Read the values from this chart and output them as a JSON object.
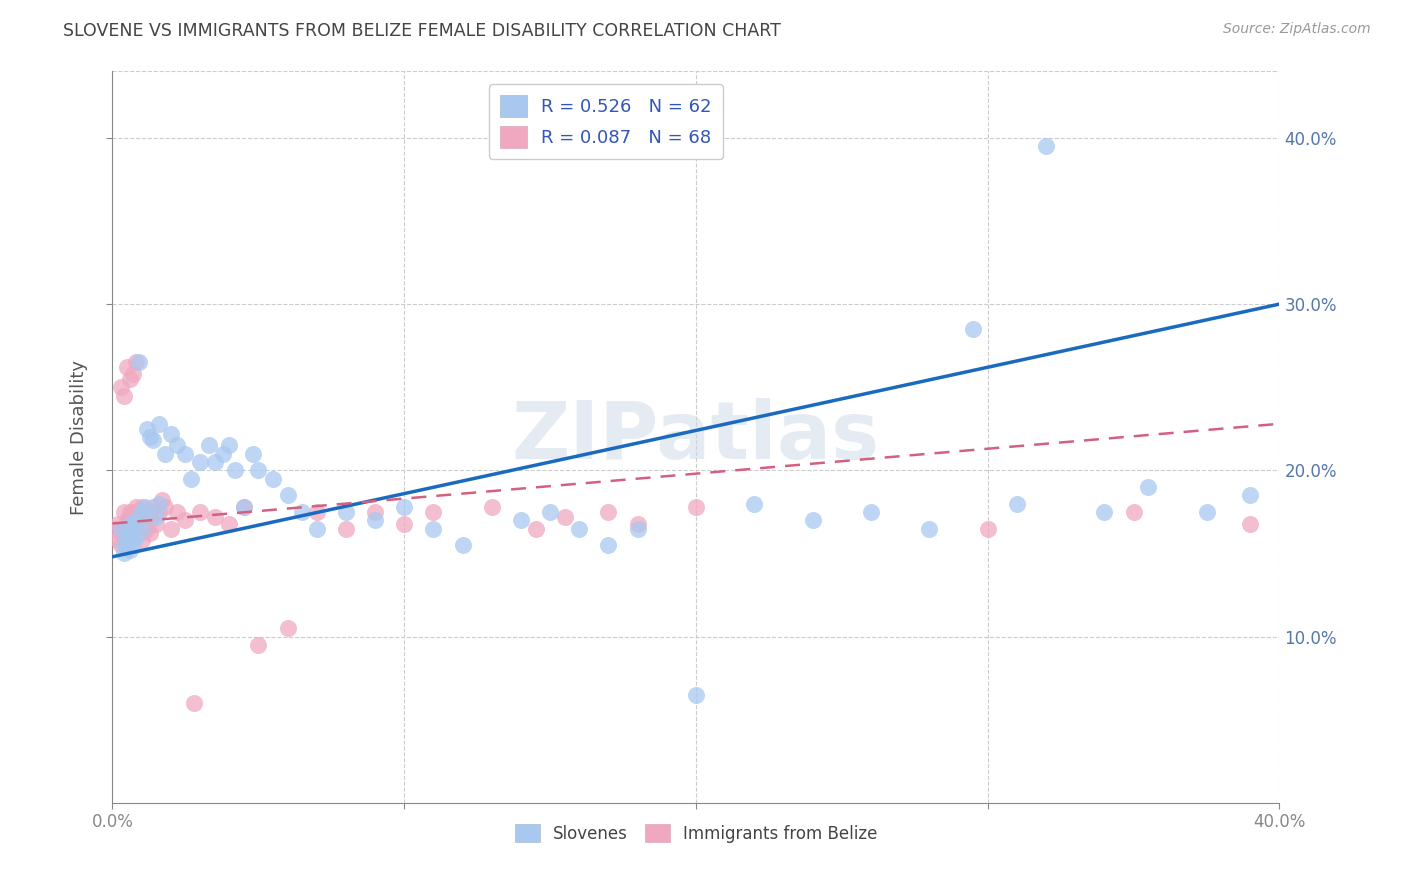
{
  "title": "SLOVENE VS IMMIGRANTS FROM BELIZE FEMALE DISABILITY CORRELATION CHART",
  "source": "Source: ZipAtlas.com",
  "xlabel": "",
  "ylabel": "Female Disability",
  "xlim": [
    0.0,
    0.4
  ],
  "ylim": [
    0.0,
    0.44
  ],
  "xtick_labels": [
    "0.0%",
    "",
    "",
    "",
    "40.0%"
  ],
  "xtick_values": [
    0.0,
    0.1,
    0.2,
    0.3,
    0.4
  ],
  "ytick_labels": [
    "10.0%",
    "20.0%",
    "30.0%",
    "40.0%"
  ],
  "ytick_values": [
    0.1,
    0.2,
    0.3,
    0.4
  ],
  "R_slovene": 0.526,
  "N_slovene": 62,
  "R_belize": 0.087,
  "N_belize": 68,
  "slovene_color": "#a8c8f0",
  "belize_color": "#f0a8c0",
  "slovene_line_color": "#1a6bbf",
  "belize_line_color": "#d46080",
  "watermark": "ZIPatlas",
  "background_color": "#ffffff",
  "slovene_x": [
    0.003,
    0.004,
    0.004,
    0.005,
    0.005,
    0.006,
    0.006,
    0.006,
    0.007,
    0.007,
    0.008,
    0.008,
    0.009,
    0.01,
    0.01,
    0.011,
    0.012,
    0.013,
    0.014,
    0.015,
    0.016,
    0.016,
    0.018,
    0.02,
    0.022,
    0.025,
    0.027,
    0.03,
    0.033,
    0.035,
    0.038,
    0.04,
    0.042,
    0.045,
    0.048,
    0.05,
    0.055,
    0.06,
    0.065,
    0.07,
    0.08,
    0.09,
    0.1,
    0.11,
    0.12,
    0.14,
    0.15,
    0.16,
    0.17,
    0.18,
    0.2,
    0.22,
    0.24,
    0.26,
    0.28,
    0.295,
    0.31,
    0.32,
    0.34,
    0.355,
    0.375,
    0.39
  ],
  "slovene_y": [
    0.165,
    0.155,
    0.15,
    0.158,
    0.162,
    0.152,
    0.16,
    0.168,
    0.165,
    0.155,
    0.16,
    0.17,
    0.265,
    0.165,
    0.175,
    0.178,
    0.225,
    0.22,
    0.218,
    0.172,
    0.18,
    0.228,
    0.21,
    0.222,
    0.215,
    0.21,
    0.195,
    0.205,
    0.215,
    0.205,
    0.21,
    0.215,
    0.2,
    0.178,
    0.21,
    0.2,
    0.195,
    0.185,
    0.175,
    0.165,
    0.175,
    0.17,
    0.178,
    0.165,
    0.155,
    0.17,
    0.175,
    0.165,
    0.155,
    0.165,
    0.065,
    0.18,
    0.17,
    0.175,
    0.165,
    0.285,
    0.18,
    0.395,
    0.175,
    0.19,
    0.175,
    0.185
  ],
  "belize_x": [
    0.001,
    0.002,
    0.002,
    0.003,
    0.003,
    0.003,
    0.004,
    0.004,
    0.004,
    0.005,
    0.005,
    0.005,
    0.005,
    0.006,
    0.006,
    0.006,
    0.006,
    0.006,
    0.007,
    0.007,
    0.007,
    0.007,
    0.007,
    0.008,
    0.008,
    0.008,
    0.008,
    0.009,
    0.009,
    0.009,
    0.01,
    0.01,
    0.01,
    0.01,
    0.011,
    0.011,
    0.012,
    0.013,
    0.013,
    0.014,
    0.015,
    0.016,
    0.017,
    0.018,
    0.02,
    0.022,
    0.025,
    0.028,
    0.03,
    0.035,
    0.04,
    0.045,
    0.05,
    0.06,
    0.07,
    0.08,
    0.09,
    0.1,
    0.11,
    0.13,
    0.145,
    0.155,
    0.17,
    0.18,
    0.2,
    0.3,
    0.35,
    0.39
  ],
  "belize_y": [
    0.165,
    0.158,
    0.168,
    0.155,
    0.162,
    0.25,
    0.165,
    0.175,
    0.245,
    0.16,
    0.155,
    0.17,
    0.262,
    0.168,
    0.175,
    0.255,
    0.165,
    0.172,
    0.16,
    0.168,
    0.258,
    0.175,
    0.162,
    0.165,
    0.172,
    0.178,
    0.265,
    0.168,
    0.175,
    0.162,
    0.158,
    0.165,
    0.172,
    0.178,
    0.168,
    0.175,
    0.165,
    0.162,
    0.17,
    0.178,
    0.168,
    0.175,
    0.182,
    0.178,
    0.165,
    0.175,
    0.17,
    0.06,
    0.175,
    0.172,
    0.168,
    0.178,
    0.095,
    0.105,
    0.175,
    0.165,
    0.175,
    0.168,
    0.175,
    0.178,
    0.165,
    0.172,
    0.175,
    0.168,
    0.178,
    0.165,
    0.175,
    0.168
  ]
}
